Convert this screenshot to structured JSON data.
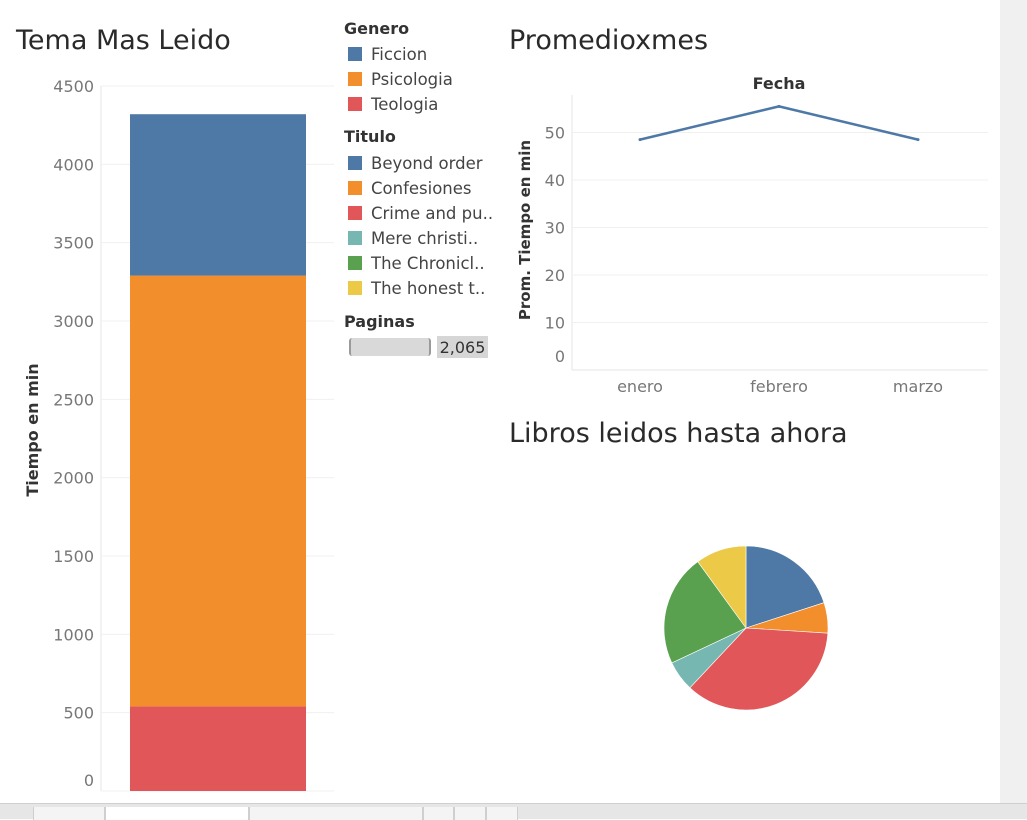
{
  "panels": {
    "bar": {
      "title": "Tema Mas Leido"
    },
    "line": {
      "title": "Promedioxmes"
    },
    "pie": {
      "title": "Libros leidos hasta ahora"
    }
  },
  "legend": {
    "genero": {
      "title": "Genero",
      "items": [
        {
          "label": "Ficcion",
          "color": "#4e79a7"
        },
        {
          "label": "Psicologia",
          "color": "#f28e2b"
        },
        {
          "label": "Teologia",
          "color": "#e15759"
        }
      ]
    },
    "titulo": {
      "title": "Titulo",
      "items": [
        {
          "label": "Beyond order",
          "color": "#4e79a7"
        },
        {
          "label": "Confesiones",
          "color": "#f28e2b"
        },
        {
          "label": "Crime and pu..",
          "color": "#e15759"
        },
        {
          "label": "Mere christi..",
          "color": "#76b7b2"
        },
        {
          "label": "The Chronicl..",
          "color": "#59a14f"
        },
        {
          "label": "The honest t..",
          "color": "#edc948"
        }
      ]
    },
    "paginas": {
      "title": "Paginas",
      "value_label": "2,065"
    }
  },
  "chart_data": [
    {
      "type": "bar",
      "title": "Tema Mas Leido",
      "ylabel": "Tiempo en min",
      "ylim": [
        0,
        4500
      ],
      "yticks": [
        0,
        500,
        1000,
        1500,
        2000,
        2500,
        3000,
        3500,
        4000,
        4500
      ],
      "series": [
        {
          "name": "Teologia",
          "color": "#e15759",
          "values": [
            540
          ]
        },
        {
          "name": "Psicologia",
          "color": "#f28e2b",
          "values": [
            2750
          ]
        },
        {
          "name": "Ficcion",
          "color": "#4e79a7",
          "values": [
            1030
          ]
        }
      ]
    },
    {
      "type": "line",
      "title": "Promedioxmes",
      "xlabel": "Fecha",
      "ylabel": "Prom. Tiempo en min",
      "categories": [
        "enero",
        "febrero",
        "marzo"
      ],
      "values": [
        48.5,
        55.5,
        48.5
      ],
      "ylim": [
        0,
        55
      ],
      "yticks": [
        0,
        10,
        20,
        30,
        40,
        50
      ],
      "color": "#4e79a7"
    },
    {
      "type": "pie",
      "title": "Libros leidos hasta ahora",
      "slices": [
        {
          "label": "Beyond order",
          "value": 20,
          "color": "#4e79a7"
        },
        {
          "label": "Confesiones",
          "value": 6,
          "color": "#f28e2b"
        },
        {
          "label": "Crime and pu..",
          "value": 36,
          "color": "#e15759"
        },
        {
          "label": "Mere christi..",
          "value": 6,
          "color": "#76b7b2"
        },
        {
          "label": "The Chronicl..",
          "value": 22,
          "color": "#59a14f"
        },
        {
          "label": "The honest t..",
          "value": 10,
          "color": "#edc948"
        }
      ]
    }
  ]
}
